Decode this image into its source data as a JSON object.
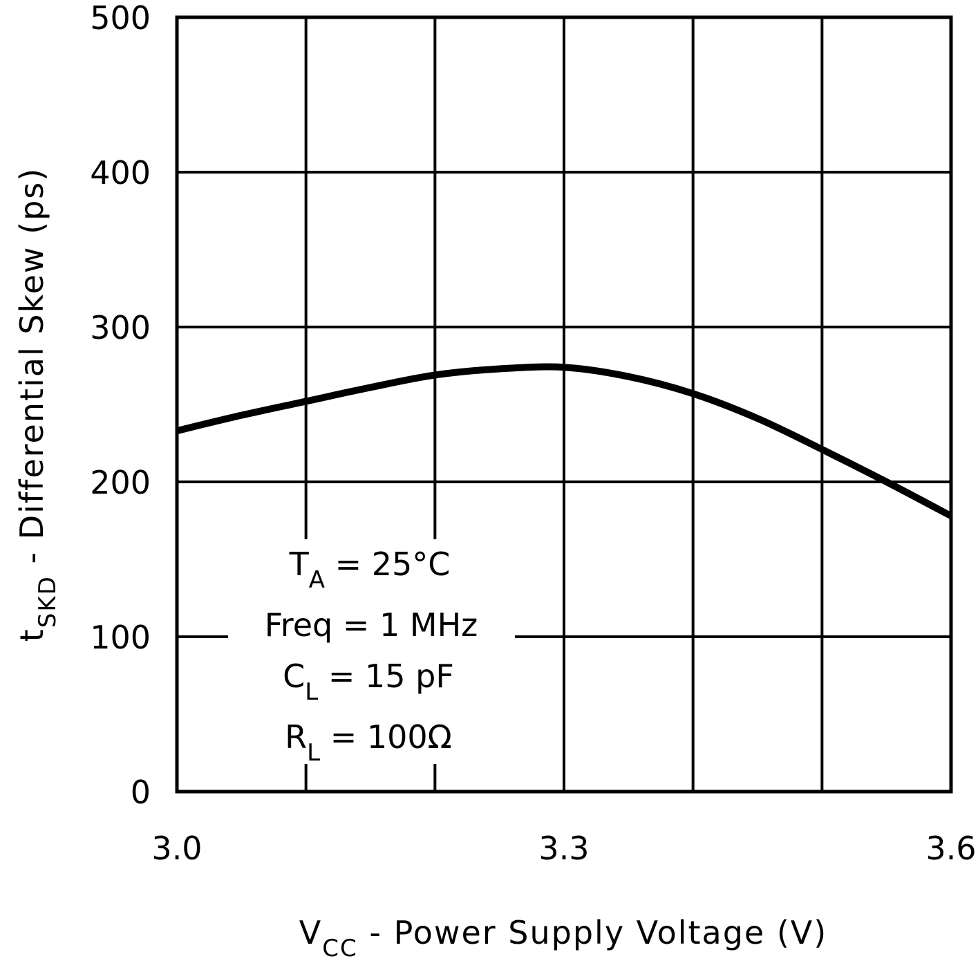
{
  "chart_data": {
    "type": "line",
    "title": "",
    "xlabel": {
      "main": "V",
      "sub": "CC",
      "rest": " - Power Supply Voltage (V)"
    },
    "ylabel": {
      "main": "t",
      "sub": "SKD",
      "rest": " - Differential Skew (ps)"
    },
    "xlim": [
      3.0,
      3.6
    ],
    "ylim": [
      0,
      500
    ],
    "x_ticks": [
      "3.0",
      "3.3",
      "3.6"
    ],
    "x_tick_values": [
      3.0,
      3.3,
      3.6
    ],
    "y_ticks": [
      "0",
      "100",
      "200",
      "300",
      "400",
      "500"
    ],
    "y_tick_values": [
      0,
      100,
      200,
      300,
      400,
      500
    ],
    "grid": true,
    "x_grid_step": 0.1,
    "y_grid_step": 100,
    "series": [
      {
        "x": [
          3.0,
          3.05,
          3.1,
          3.15,
          3.2,
          3.25,
          3.3,
          3.35,
          3.4,
          3.45,
          3.5,
          3.55,
          3.6
        ],
        "y": [
          233,
          243,
          252,
          261,
          269,
          273,
          274,
          268,
          257,
          241,
          221,
          200,
          178
        ],
        "color": "#000000"
      }
    ],
    "annotations": [
      {
        "main": "T",
        "sub": "A",
        "rest": " = 25°C"
      },
      {
        "main": "Freq = 1 MHz",
        "sub": "",
        "rest": ""
      },
      {
        "main": "C",
        "sub": "L",
        "rest": " = 15 pF"
      },
      {
        "main": "R",
        "sub": "L",
        "rest": " = 100Ω"
      }
    ]
  }
}
